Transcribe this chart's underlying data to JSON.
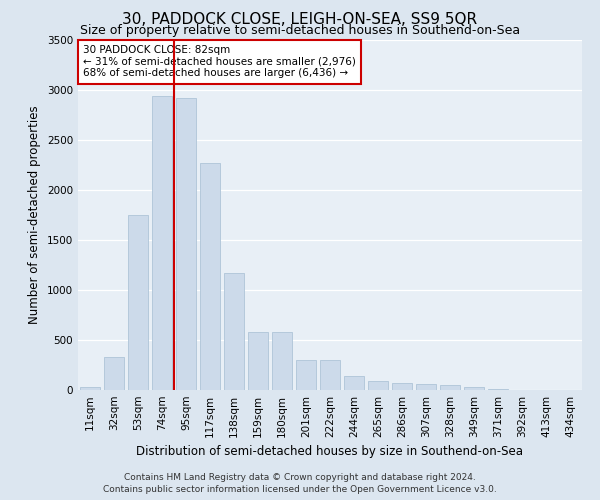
{
  "title": "30, PADDOCK CLOSE, LEIGH-ON-SEA, SS9 5QR",
  "subtitle": "Size of property relative to semi-detached houses in Southend-on-Sea",
  "xlabel": "Distribution of semi-detached houses by size in Southend-on-Sea",
  "ylabel": "Number of semi-detached properties",
  "footnote1": "Contains HM Land Registry data © Crown copyright and database right 2024.",
  "footnote2": "Contains public sector information licensed under the Open Government Licence v3.0.",
  "bar_labels": [
    "11sqm",
    "32sqm",
    "53sqm",
    "74sqm",
    "95sqm",
    "117sqm",
    "138sqm",
    "159sqm",
    "180sqm",
    "201sqm",
    "222sqm",
    "244sqm",
    "265sqm",
    "286sqm",
    "307sqm",
    "328sqm",
    "349sqm",
    "371sqm",
    "392sqm",
    "413sqm",
    "434sqm"
  ],
  "bar_values": [
    30,
    335,
    1750,
    2940,
    2920,
    2275,
    1175,
    580,
    580,
    300,
    300,
    140,
    90,
    75,
    60,
    50,
    30,
    10,
    5,
    3,
    2
  ],
  "bar_color": "#ccdaea",
  "bar_edgecolor": "#aec4d8",
  "vline_x": 3.5,
  "vline_color": "#cc0000",
  "ylim": [
    0,
    3500
  ],
  "yticks": [
    0,
    500,
    1000,
    1500,
    2000,
    2500,
    3000,
    3500
  ],
  "annotation_text": "30 PADDOCK CLOSE: 82sqm\n← 31% of semi-detached houses are smaller (2,976)\n68% of semi-detached houses are larger (6,436) →",
  "annotation_box_facecolor": "#ffffff",
  "annotation_box_edgecolor": "#cc0000",
  "fig_facecolor": "#dce6f0",
  "axes_facecolor": "#e8eff6",
  "grid_color": "#ffffff",
  "title_fontsize": 11,
  "subtitle_fontsize": 9,
  "ylabel_fontsize": 8.5,
  "xlabel_fontsize": 8.5,
  "tick_fontsize": 7.5,
  "footnote_fontsize": 6.5
}
